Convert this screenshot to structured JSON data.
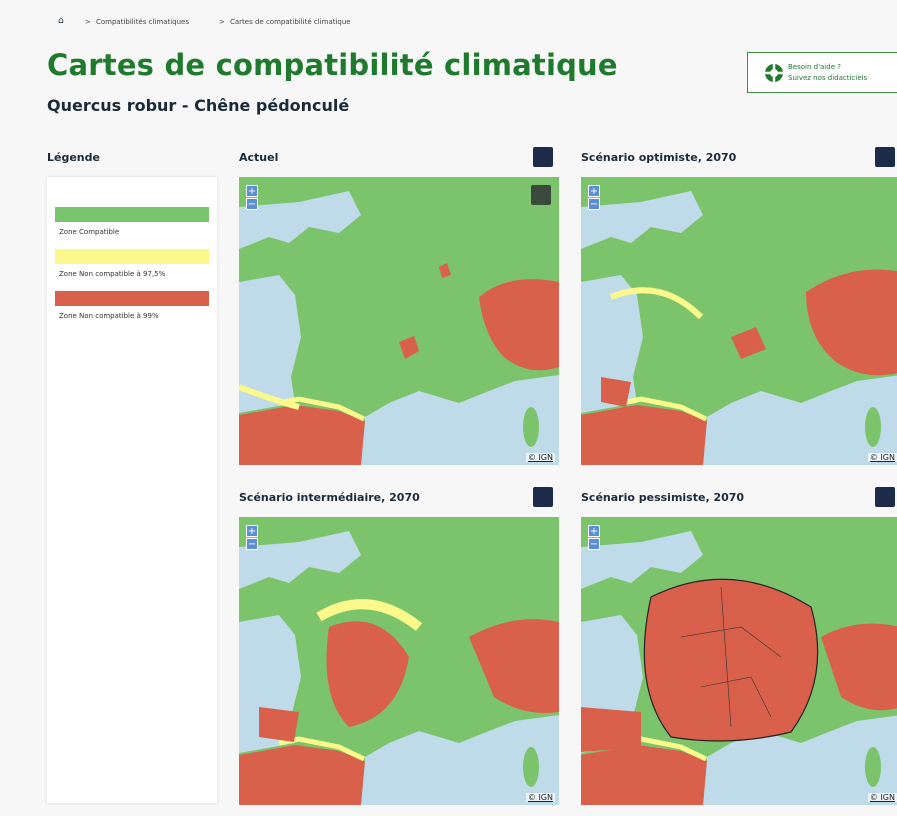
{
  "breadcrumb": [
    "Compatibilités climatiques",
    "Cartes de compatibilité climatique"
  ],
  "header": {
    "title": "Cartes de compatibilité climatique",
    "subtitle": "Quercus robur - Chêne pédonculé"
  },
  "help": {
    "line1": "Besoin d'aide ?",
    "line2": "Suivez nos didacticiels"
  },
  "legend": {
    "title": "Légende",
    "items": [
      {
        "label": "Zone Compatible",
        "color": "#78c46f"
      },
      {
        "label": "Zone Non compatible à 97,5%",
        "color": "#fbf98b"
      },
      {
        "label": "Zone Non compatible à 99%",
        "color": "#d9604a"
      }
    ]
  },
  "maps": [
    {
      "title": "Actuel"
    },
    {
      "title": "Scénario optimiste, 2070"
    },
    {
      "title": "Scénario intermédiaire, 2070"
    },
    {
      "title": "Scénario pessimiste, 2070"
    }
  ],
  "map_controls": {
    "zoom_in": "+",
    "zoom_out": "−",
    "attribution": "© IGN"
  }
}
